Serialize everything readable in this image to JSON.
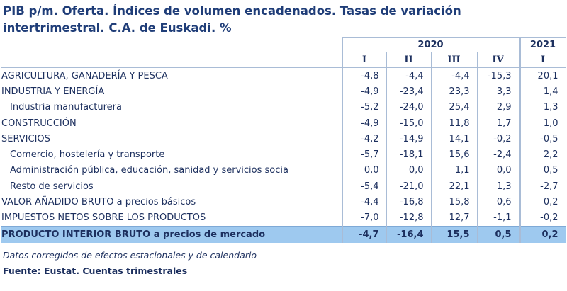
{
  "header": {
    "title": "PIB p/m. Oferta. Índices de volumen encadenados. Tasas de variación intertrimestral. C.A. de Euskadi. %"
  },
  "table": {
    "years": [
      "2020",
      "2021"
    ],
    "quarters": [
      "I",
      "II",
      "III",
      "IV",
      "I"
    ],
    "rows": [
      [
        "AGRICULTURA, GANADERÍA Y PESCA",
        "-4,8",
        "-4,4",
        "-4,4",
        "-15,3",
        "20,1"
      ],
      [
        "INDUSTRIA Y ENERGÍA",
        "-4,9",
        "-23,4",
        "23,3",
        "3,3",
        "1,4"
      ],
      [
        "Industria manufacturera",
        "-5,2",
        "-24,0",
        "25,4",
        "2,9",
        "1,3"
      ],
      [
        "CONSTRUCCIÓN",
        "-4,9",
        "-15,0",
        "11,8",
        "1,7",
        "1,0"
      ],
      [
        "SERVICIOS",
        "-4,2",
        "-14,9",
        "14,1",
        "-0,2",
        "-0,5"
      ],
      [
        "Comercio, hostelería y transporte",
        "-5,7",
        "-18,1",
        "15,6",
        "-2,4",
        "2,2"
      ],
      [
        "Administración pública, educación, sanidad y servicios socia",
        "0,0",
        "0,0",
        "1,1",
        "0,0",
        "0,5"
      ],
      [
        "Resto de servicios",
        "-5,4",
        "-21,0",
        "22,1",
        "1,3",
        "-2,7"
      ],
      [
        "VALOR AÑADIDO BRUTO a precios básicos",
        "-4,4",
        "-16,8",
        "15,8",
        "0,6",
        "0,2"
      ],
      [
        "IMPUESTOS NETOS SOBRE LOS PRODUCTOS",
        "-7,0",
        "-12,8",
        "12,7",
        "-1,1",
        "-0,2"
      ],
      [
        "PRODUCTO INTERIOR BRUTO a precios de mercado",
        "-4,7",
        "-16,4",
        "15,5",
        "0,5",
        "0,2"
      ]
    ]
  },
  "notes": {
    "note": "Datos corregidos de efectos estacionales y de calendario",
    "source": "Fuente: Eustat. Cuentas trimestrales"
  }
}
